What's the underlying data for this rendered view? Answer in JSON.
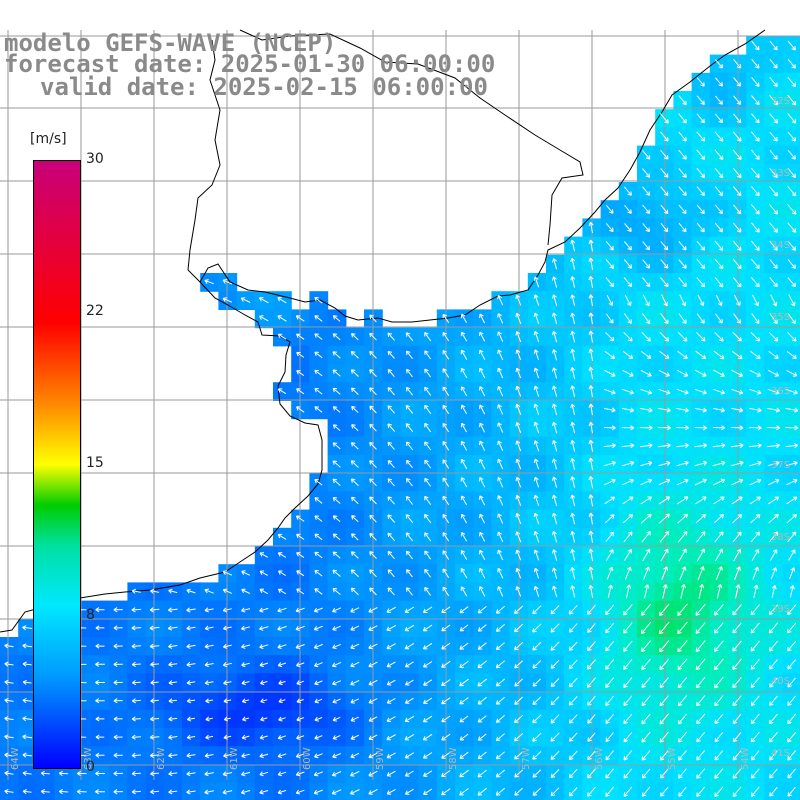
{
  "title": {
    "line1": "modelo GEFS-WAVE (NCEP)",
    "line2": "forecast date: 2025-01-30 06:00:00",
    "line3": "valid date: 2025-02-15 06:00:00"
  },
  "colorbar": {
    "units": "[m/s]",
    "min": 0,
    "max": 30,
    "ticks": [
      "30",
      "22",
      "15",
      "8",
      "0"
    ],
    "stops": [
      "#c8007a",
      "#ff0000",
      "#ff8800",
      "#ffff00",
      "#00cc00",
      "#00e0a0",
      "#00e8ff",
      "#0099ff",
      "#0000ff"
    ]
  },
  "map": {
    "land_color": "#ffffff",
    "coast_color": "#000000",
    "grid_color": "#9a9a9a",
    "arrow_color": "#ffffff",
    "lat_labels": [
      "32S",
      "33S",
      "34S",
      "35S",
      "36S",
      "37S",
      "38S",
      "39S",
      "40S",
      "41S"
    ],
    "lon_labels": [
      "64W",
      "63W",
      "62W",
      "61W",
      "60W",
      "59W",
      "58W",
      "57W",
      "56W",
      "55W",
      "54W"
    ]
  }
}
